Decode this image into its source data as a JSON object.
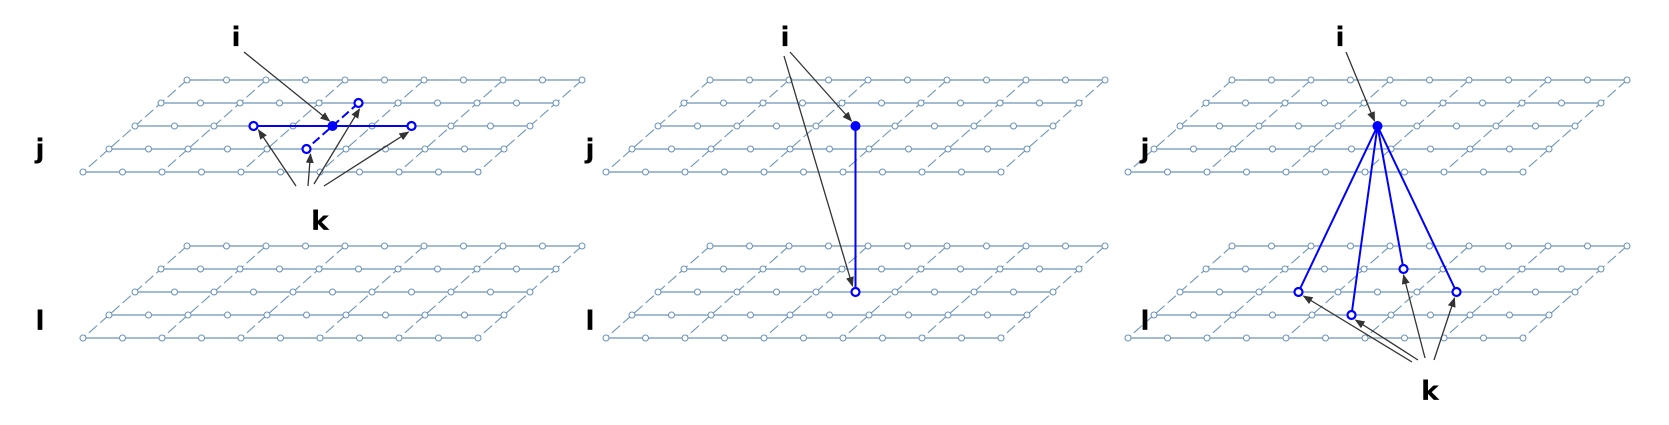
{
  "colors": {
    "grid": "#6d95b8",
    "highlight": "#0000ff",
    "arrow": "#333333",
    "label": "#000000"
  },
  "panels": [
    {
      "name": "panel-intra-layer",
      "labels": {
        "i": "i",
        "j": "j",
        "k": "k",
        "l": "l"
      }
    },
    {
      "name": "panel-inter-layer-single",
      "labels": {
        "i": "i",
        "j": "j",
        "l": "l"
      }
    },
    {
      "name": "panel-inter-layer-multi",
      "labels": {
        "i": "i",
        "j": "j",
        "k": "k",
        "l": "l"
      }
    }
  ]
}
